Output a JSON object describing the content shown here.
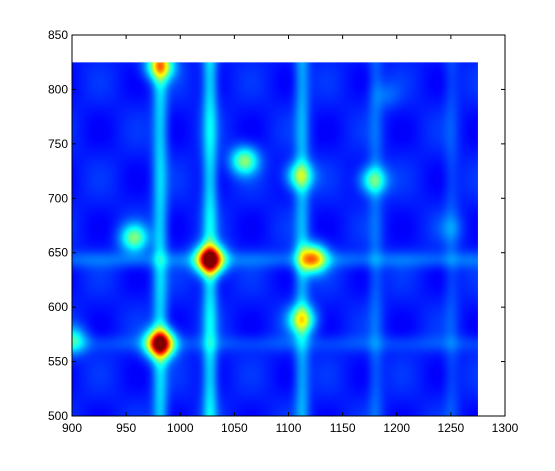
{
  "chart_data": {
    "type": "heatmap",
    "title": "",
    "xlabel": "",
    "ylabel": "",
    "xlim": [
      900,
      1300
    ],
    "ylim": [
      500,
      850
    ],
    "data_extent": {
      "x": [
        900,
        1275
      ],
      "y": [
        500,
        825
      ]
    },
    "xticks": [
      900,
      950,
      1000,
      1050,
      1100,
      1150,
      1200,
      1250,
      1300
    ],
    "yticks": [
      500,
      550,
      600,
      650,
      700,
      750,
      800,
      850
    ],
    "grid": false,
    "legend": "none",
    "colormap": "jet",
    "background_value": 0.15,
    "hot_spots": [
      {
        "x": 981,
        "y": 567,
        "intensity": 0.95
      },
      {
        "x": 1027,
        "y": 644,
        "intensity": 0.98
      },
      {
        "x": 1122,
        "y": 645,
        "intensity": 0.68
      },
      {
        "x": 1112,
        "y": 589,
        "intensity": 0.52
      },
      {
        "x": 957,
        "y": 664,
        "intensity": 0.48
      },
      {
        "x": 1059,
        "y": 735,
        "intensity": 0.5
      },
      {
        "x": 1110,
        "y": 721,
        "intensity": 0.47
      },
      {
        "x": 1178,
        "y": 717,
        "intensity": 0.45
      },
      {
        "x": 981,
        "y": 822,
        "intensity": 0.6
      },
      {
        "x": 1250,
        "y": 673,
        "intensity": 0.22
      },
      {
        "x": 1190,
        "y": 795,
        "intensity": 0.22
      },
      {
        "x": 900,
        "y": 570,
        "intensity": 0.4
      }
    ],
    "streaks_x": [
      {
        "x": 981,
        "intensity": 0.18
      },
      {
        "x": 1027,
        "intensity": 0.2
      },
      {
        "x": 1112,
        "intensity": 0.14
      },
      {
        "x": 1180,
        "intensity": 0.07
      },
      {
        "x": 1250,
        "intensity": 0.05
      }
    ],
    "streaks_y": [
      {
        "y": 644,
        "intensity": 0.08
      },
      {
        "y": 567,
        "intensity": 0.05
      }
    ]
  }
}
